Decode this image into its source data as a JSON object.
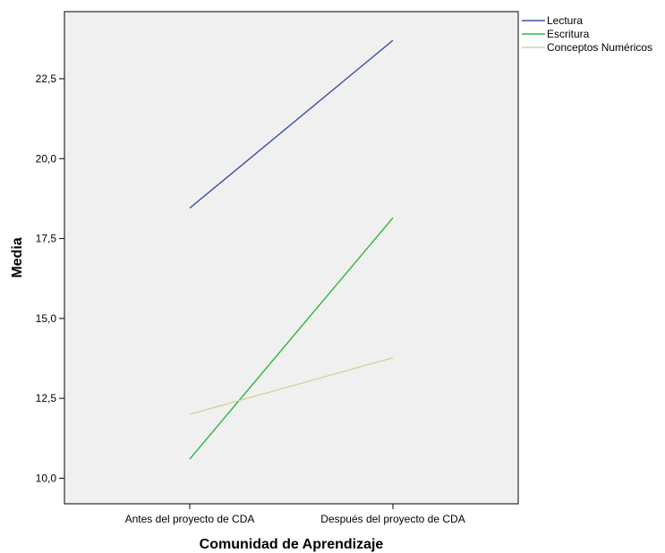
{
  "chart_data": {
    "type": "line",
    "title": "",
    "xlabel": "Comunidad de Aprendizaje",
    "ylabel": "Media",
    "categories": [
      "Antes del proyecto de CDA",
      "Después del proyecto de CDA"
    ],
    "ylim": [
      9.2,
      24.6
    ],
    "yticks": [
      10.0,
      12.5,
      15.0,
      17.5,
      20.0,
      22.5
    ],
    "ytick_labels": [
      "10,0",
      "12,5",
      "15,0",
      "17,5",
      "20,0",
      "22,5"
    ],
    "grid": false,
    "legend_position": "top-right outside",
    "plot_background": "#f0f0f0",
    "series": [
      {
        "name": "Lectura",
        "values": [
          18.45,
          23.7
        ],
        "color": "#3f51a8"
      },
      {
        "name": "Escritura",
        "values": [
          10.6,
          18.15
        ],
        "color": "#2ab83f"
      },
      {
        "name": "Conceptos Numéricos",
        "values": [
          12.0,
          13.77
        ],
        "color": "#d6d09a"
      }
    ]
  }
}
